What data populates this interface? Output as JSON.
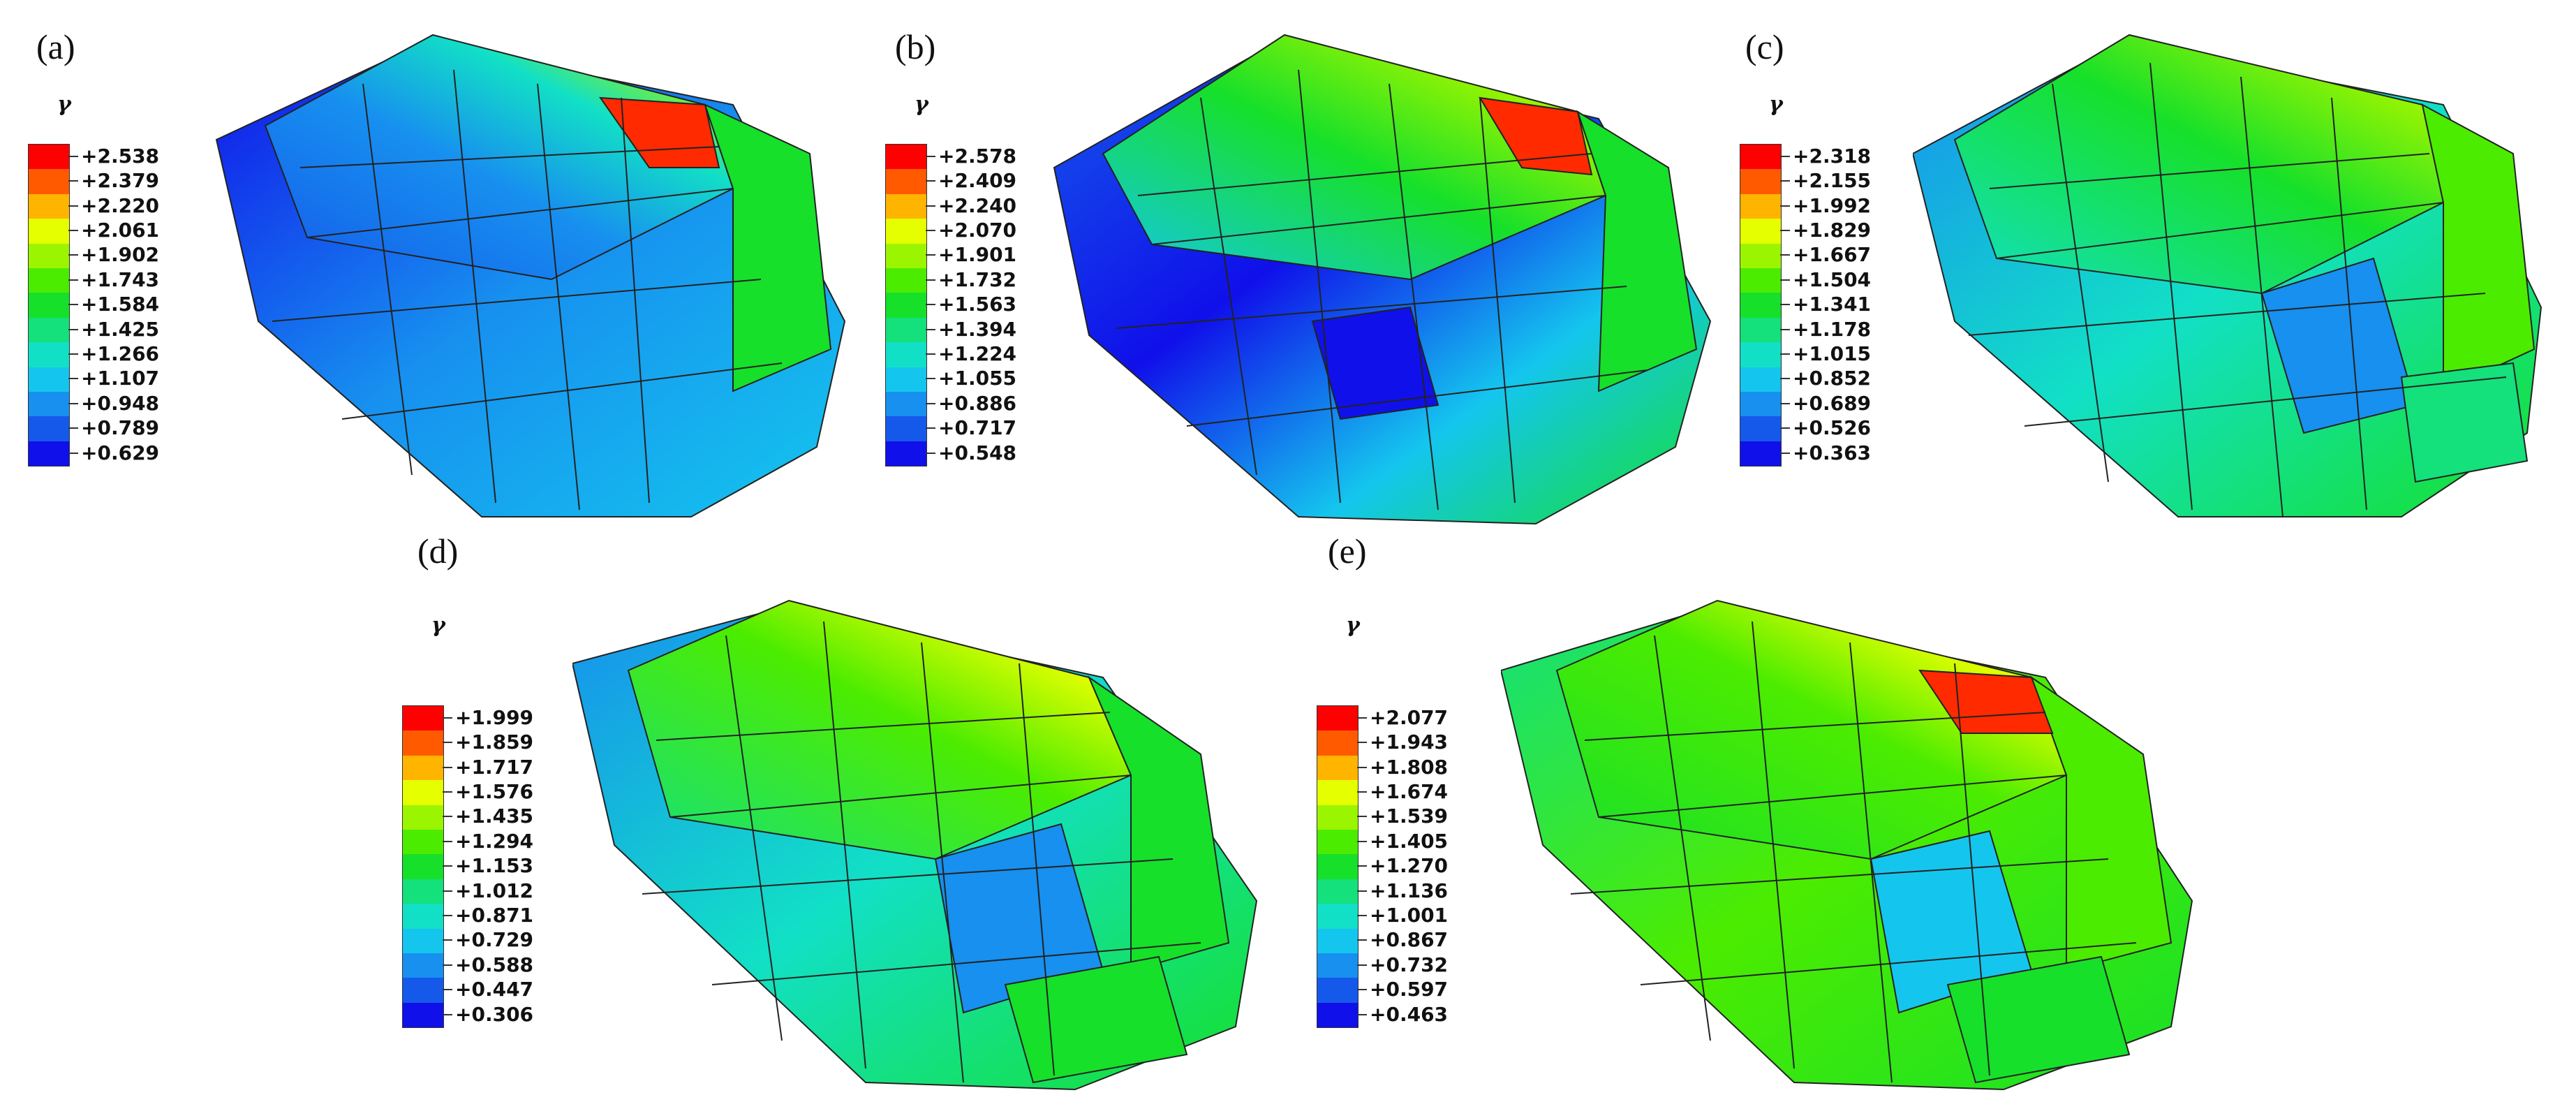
{
  "legend_symbol": "γ",
  "colors": [
    "#ff0000",
    "#ff5a00",
    "#ffb400",
    "#e6ff00",
    "#9cf500",
    "#4cec00",
    "#16e02a",
    "#14e07c",
    "#12e0c6",
    "#14c6ee",
    "#1790ef",
    "#1559ea",
    "#1010ea"
  ],
  "panels": [
    {
      "label": "(a)",
      "values": [
        "+2.538",
        "+2.379",
        "+2.220",
        "+2.061",
        "+1.902",
        "+1.743",
        "+1.584",
        "+1.425",
        "+1.266",
        "+1.107",
        "+0.948",
        "+0.789",
        "+0.629"
      ]
    },
    {
      "label": "(b)",
      "values": [
        "+2.578",
        "+2.409",
        "+2.240",
        "+2.070",
        "+1.901",
        "+1.732",
        "+1.563",
        "+1.394",
        "+1.224",
        "+1.055",
        "+0.886",
        "+0.717",
        "+0.548"
      ]
    },
    {
      "label": "(c)",
      "values": [
        "+2.318",
        "+2.155",
        "+1.992",
        "+1.829",
        "+1.667",
        "+1.504",
        "+1.341",
        "+1.178",
        "+1.015",
        "+0.852",
        "+0.689",
        "+0.526",
        "+0.363"
      ]
    },
    {
      "label": "(d)",
      "values": [
        "+1.999",
        "+1.859",
        "+1.717",
        "+1.576",
        "+1.435",
        "+1.294",
        "+1.153",
        "+1.012",
        "+0.871",
        "+0.729",
        "+0.588",
        "+0.447",
        "+0.306"
      ]
    },
    {
      "label": "(e)",
      "values": [
        "+2.077",
        "+1.943",
        "+1.808",
        "+1.674",
        "+1.539",
        "+1.405",
        "+1.270",
        "+1.136",
        "+1.001",
        "+0.867",
        "+0.732",
        "+0.597",
        "+0.463"
      ]
    }
  ]
}
